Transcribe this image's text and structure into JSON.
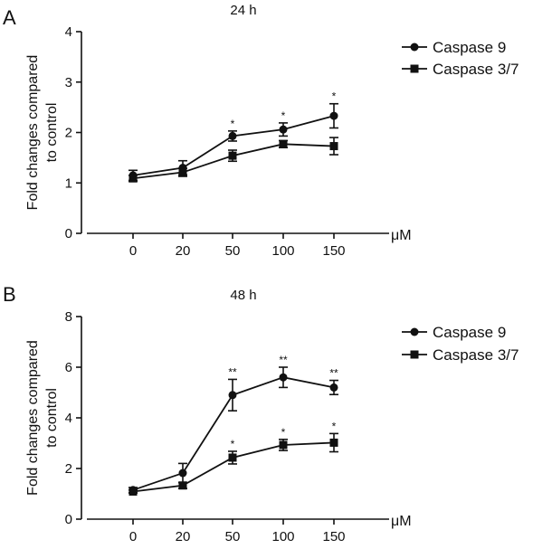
{
  "chart_data": [
    {
      "type": "line",
      "panel": "A",
      "title": "24 h",
      "ylabel": "Fold changes compared to control",
      "ylabel_lines": [
        "Fold changes compared",
        "to control"
      ],
      "x_unit": "μM",
      "categories": [
        "0",
        "20",
        "50",
        "100",
        "150"
      ],
      "ylim": [
        0,
        4
      ],
      "yticks": [
        "0",
        "1",
        "2",
        "3",
        "4"
      ],
      "legend_position": "top-right",
      "grid": false,
      "series": [
        {
          "name": "Caspase 9",
          "marker": "circle",
          "values": [
            1.15,
            1.3,
            1.93,
            2.06,
            2.33
          ],
          "errors": [
            0.1,
            0.14,
            0.1,
            0.13,
            0.24
          ],
          "significance": [
            "",
            "",
            "*",
            "*",
            "*"
          ]
        },
        {
          "name": "Caspase 3/7",
          "marker": "square",
          "values": [
            1.09,
            1.21,
            1.54,
            1.77,
            1.73
          ],
          "errors": [
            0.06,
            0.08,
            0.11,
            0.07,
            0.17
          ],
          "significance": [
            "",
            "",
            "",
            "",
            ""
          ]
        }
      ]
    },
    {
      "type": "line",
      "panel": "B",
      "title": "48 h",
      "ylabel": "Fold changes compared to control",
      "ylabel_lines": [
        "Fold changes compared",
        "to control"
      ],
      "x_unit": "μM",
      "categories": [
        "0",
        "20",
        "50",
        "100",
        "150"
      ],
      "ylim": [
        0,
        8
      ],
      "yticks": [
        "0",
        "2",
        "4",
        "6",
        "8"
      ],
      "legend_position": "top-right",
      "grid": false,
      "series": [
        {
          "name": "Caspase 9",
          "marker": "circle",
          "values": [
            1.15,
            1.82,
            4.9,
            5.6,
            5.2
          ],
          "errors": [
            0.1,
            0.38,
            0.62,
            0.4,
            0.28
          ],
          "significance": [
            "",
            "",
            "**",
            "**",
            "**"
          ]
        },
        {
          "name": "Caspase 3/7",
          "marker": "square",
          "values": [
            1.09,
            1.33,
            2.43,
            2.93,
            3.02
          ],
          "errors": [
            0.06,
            0.12,
            0.25,
            0.22,
            0.36
          ],
          "significance": [
            "",
            "",
            "*",
            "*",
            "*"
          ]
        }
      ]
    }
  ]
}
